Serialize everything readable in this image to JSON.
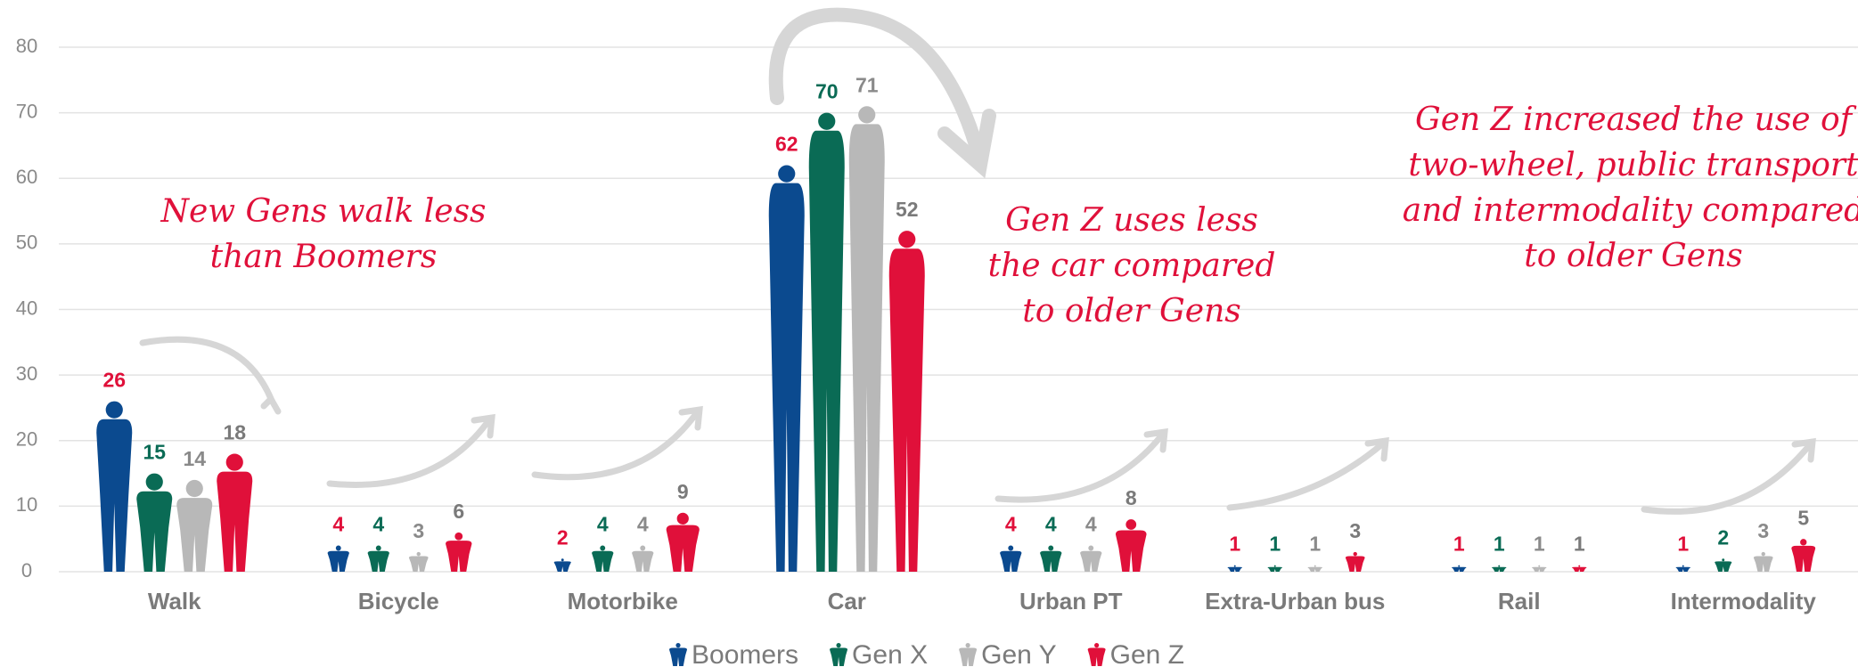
{
  "chart_data": {
    "type": "bar",
    "categories": [
      "Walk",
      "Bicycle",
      "Motorbike",
      "Car",
      "Urban PT",
      "Extra-Urban bus",
      "Rail",
      "Intermodality"
    ],
    "series": [
      {
        "name": "Boomers",
        "color": "#0b4a8f",
        "label_color": "#e0103a",
        "values": [
          26,
          4,
          2,
          62,
          4,
          1,
          1,
          1
        ]
      },
      {
        "name": "Gen X",
        "color": "#0a6b55",
        "label_color": "#0a6b55",
        "values": [
          15,
          4,
          4,
          70,
          4,
          1,
          1,
          2
        ]
      },
      {
        "name": "Gen Y",
        "color": "#b8b8b8",
        "label_color": "#8a8a8a",
        "values": [
          14,
          3,
          4,
          71,
          4,
          1,
          1,
          3
        ]
      },
      {
        "name": "Gen Z",
        "color": "#e0103a",
        "label_color": "#7a7a7a",
        "values": [
          18,
          6,
          9,
          52,
          8,
          3,
          1,
          5
        ]
      }
    ],
    "ylim": [
      0,
      80
    ],
    "yticks": [
      0,
      10,
      20,
      30,
      40,
      50,
      60,
      70,
      80
    ],
    "grid": true,
    "legend": "bottom",
    "annotations": [
      {
        "lines": [
          "New Gens walk less",
          "than Boomers"
        ]
      },
      {
        "lines": [
          "Gen Z uses less",
          "the car compared",
          "to older Gens"
        ]
      },
      {
        "lines": [
          "Gen Z increased the use of",
          "two-wheel, public transport",
          "and intermodality compared",
          "to older Gens"
        ]
      }
    ]
  }
}
